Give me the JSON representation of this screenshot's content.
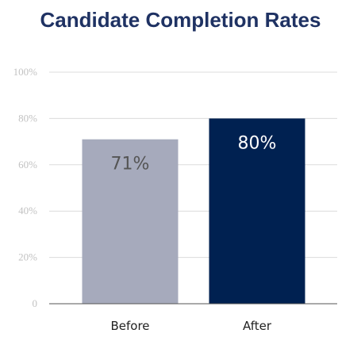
{
  "chart_data": {
    "type": "bar",
    "title": "Candidate Completion Rates",
    "categories": [
      "Before",
      "After"
    ],
    "values": [
      71,
      80
    ],
    "data_labels": [
      "71%",
      "80%"
    ],
    "ylim": [
      0,
      100
    ],
    "yticks": [
      "0",
      "20%",
      "40%",
      "60%",
      "80%",
      "100%"
    ],
    "xlabel": "",
    "ylabel": "",
    "grid": true,
    "colors": {
      "bars": [
        "#a6aabc",
        "#002151"
      ],
      "label_text": [
        "#555555",
        "#ffffff"
      ],
      "title": "#1f3263",
      "grid": "#dcdcdc",
      "axis": "#555555"
    }
  }
}
